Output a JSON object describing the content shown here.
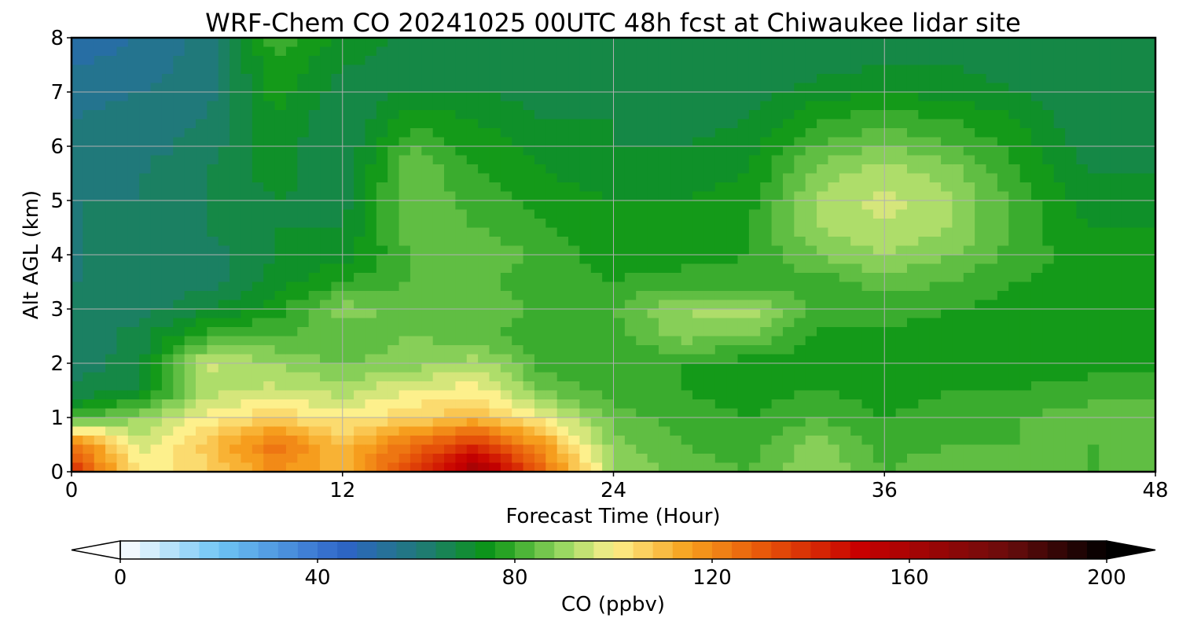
{
  "chart_data": {
    "type": "heatmap",
    "title": "WRF-Chem CO  20241025 00UTC 48h fcst at Chiwaukee lidar site",
    "xlabel": "Forecast Time (Hour)",
    "ylabel": "Alt AGL (km)",
    "xlim": [
      0,
      48
    ],
    "ylim": [
      0,
      8
    ],
    "xticks": [
      0,
      12,
      24,
      36,
      48
    ],
    "yticks": [
      0,
      1,
      2,
      3,
      4,
      5,
      6,
      7,
      8
    ],
    "grid": true,
    "x": [
      0,
      3,
      6,
      9,
      12,
      15,
      18,
      21,
      24,
      27,
      30,
      33,
      36,
      39,
      42,
      45,
      48
    ],
    "y": [
      0,
      0.5,
      1,
      1.5,
      2,
      2.5,
      3,
      3.5,
      4,
      4.5,
      5,
      5.5,
      6,
      6.5,
      7,
      7.5,
      8
    ],
    "z": [
      [
        140,
        100,
        105,
        118,
        112,
        135,
        165,
        125,
        90,
        84,
        82,
        90,
        82,
        85,
        84,
        82,
        82
      ],
      [
        125,
        95,
        108,
        125,
        110,
        125,
        140,
        115,
        88,
        82,
        80,
        88,
        80,
        82,
        82,
        82,
        82
      ],
      [
        80,
        90,
        100,
        105,
        100,
        105,
        110,
        98,
        84,
        80,
        78,
        82,
        78,
        80,
        82,
        84,
        84
      ],
      [
        66,
        70,
        92,
        95,
        92,
        98,
        100,
        85,
        80,
        78,
        76,
        78,
        76,
        78,
        78,
        80,
        80
      ],
      [
        64,
        68,
        95,
        90,
        85,
        88,
        92,
        80,
        78,
        78,
        76,
        76,
        76,
        76,
        76,
        76,
        76
      ],
      [
        62,
        68,
        80,
        82,
        84,
        86,
        84,
        78,
        80,
        88,
        86,
        77,
        77,
        76,
        76,
        76,
        76
      ],
      [
        62,
        64,
        70,
        76,
        88,
        84,
        86,
        80,
        82,
        90,
        92,
        80,
        80,
        78,
        76,
        76,
        76
      ],
      [
        62,
        62,
        64,
        72,
        78,
        82,
        82,
        80,
        78,
        80,
        80,
        80,
        84,
        82,
        78,
        76,
        76
      ],
      [
        62,
        62,
        64,
        70,
        72,
        82,
        86,
        80,
        76,
        76,
        78,
        86,
        90,
        86,
        80,
        76,
        76
      ],
      [
        62,
        62,
        66,
        70,
        70,
        84,
        82,
        78,
        76,
        76,
        78,
        90,
        94,
        90,
        80,
        74,
        74
      ],
      [
        62,
        62,
        66,
        70,
        68,
        86,
        80,
        76,
        74,
        74,
        76,
        90,
        96,
        90,
        80,
        72,
        72
      ],
      [
        60,
        62,
        66,
        72,
        66,
        86,
        78,
        74,
        72,
        72,
        74,
        88,
        92,
        88,
        78,
        70,
        70
      ],
      [
        60,
        60,
        64,
        72,
        66,
        82,
        76,
        72,
        70,
        70,
        72,
        82,
        86,
        82,
        76,
        68,
        68
      ],
      [
        58,
        60,
        62,
        74,
        66,
        76,
        74,
        70,
        70,
        68,
        70,
        78,
        80,
        78,
        74,
        66,
        66
      ],
      [
        56,
        58,
        60,
        76,
        68,
        70,
        70,
        68,
        68,
        66,
        68,
        72,
        74,
        72,
        70,
        66,
        66
      ],
      [
        54,
        56,
        60,
        78,
        70,
        68,
        68,
        66,
        66,
        66,
        66,
        68,
        70,
        70,
        68,
        66,
        66
      ],
      [
        50,
        54,
        60,
        80,
        74,
        68,
        66,
        66,
        66,
        66,
        66,
        66,
        66,
        66,
        66,
        66,
        66
      ]
    ],
    "colorbar": {
      "label": "CO  (ppbv)",
      "min": 0,
      "max": 200,
      "ticks": [
        0,
        40,
        80,
        120,
        160,
        200
      ],
      "extend": "both",
      "colormap_stops": [
        {
          "v": 0,
          "c": "#ffffff"
        },
        {
          "v": 20,
          "c": "#6ec5f5"
        },
        {
          "v": 45,
          "c": "#2e64c8"
        },
        {
          "v": 62,
          "c": "#1e7c70"
        },
        {
          "v": 75,
          "c": "#0a9614"
        },
        {
          "v": 90,
          "c": "#9ad862"
        },
        {
          "v": 100,
          "c": "#fdf08c"
        },
        {
          "v": 115,
          "c": "#f7a21e"
        },
        {
          "v": 130,
          "c": "#e8590a"
        },
        {
          "v": 150,
          "c": "#c80000"
        },
        {
          "v": 180,
          "c": "#6a0c0c"
        },
        {
          "v": 200,
          "c": "#000000"
        }
      ]
    }
  }
}
